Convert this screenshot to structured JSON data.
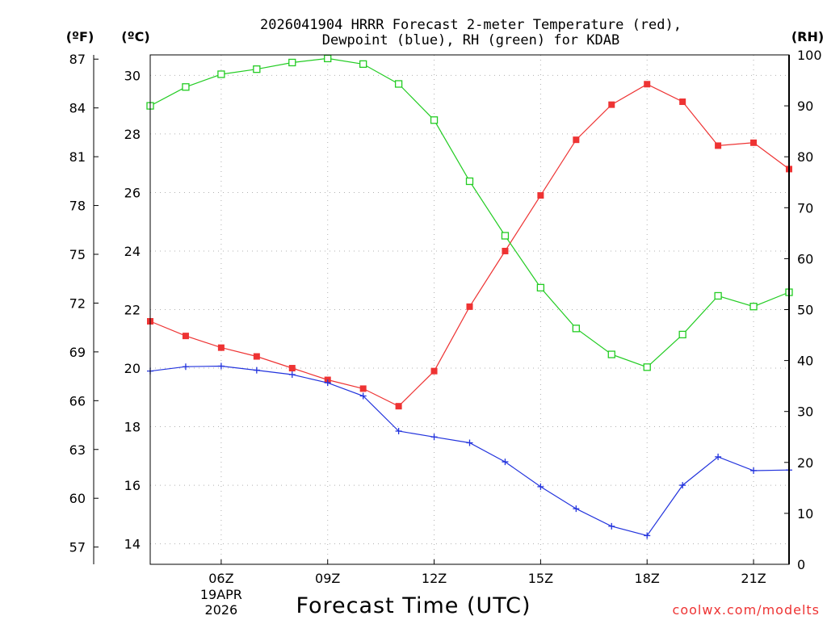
{
  "chart_data": {
    "type": "line",
    "title_line1": "2026041904 HRRR Forecast 2-meter Temperature (red),",
    "title_line2": "Dewpoint (blue), RH (green) for KDAB",
    "unit_f": "(ºF)",
    "unit_c": "(ºC)",
    "unit_rh": "(RH)",
    "xlabel": "Forecast Time (UTC)",
    "credit": "coolwx.com/modelts",
    "x_hours": [
      4,
      5,
      6,
      7,
      8,
      9,
      10,
      11,
      12,
      13,
      14,
      15,
      16,
      17,
      18,
      19,
      20,
      21,
      22
    ],
    "xlim": [
      4,
      22
    ],
    "x_ticks": [
      {
        "hour": 6,
        "label": "06Z",
        "sub1": "19APR",
        "sub2": "2026"
      },
      {
        "hour": 9,
        "label": "09Z"
      },
      {
        "hour": 12,
        "label": "12Z"
      },
      {
        "hour": 15,
        "label": "15Z"
      },
      {
        "hour": 18,
        "label": "18Z"
      },
      {
        "hour": 21,
        "label": "21Z"
      }
    ],
    "ylim_c": [
      13.3,
      30.7
    ],
    "yticks_c": [
      "14",
      "16",
      "18",
      "20",
      "22",
      "24",
      "26",
      "28",
      "30"
    ],
    "yticks_f": [
      "57",
      "60",
      "63",
      "66",
      "69",
      "72",
      "75",
      "78",
      "81",
      "84",
      "87"
    ],
    "ylim_rh": [
      0,
      100
    ],
    "yticks_rh": [
      "0",
      "10",
      "20",
      "30",
      "40",
      "50",
      "60",
      "70",
      "80",
      "90",
      "100"
    ],
    "colors": {
      "temperature": "#ee3333",
      "dewpoint": "#2233dd",
      "rh": "#22cc22"
    },
    "series": [
      {
        "name": "Temperature",
        "units": "C",
        "marker": "filled-square",
        "values": [
          21.6,
          21.1,
          20.7,
          20.4,
          20.0,
          19.6,
          19.3,
          18.7,
          19.9,
          22.1,
          24.0,
          25.9,
          27.8,
          29.0,
          29.7,
          29.1,
          27.6,
          27.7,
          26.8
        ]
      },
      {
        "name": "Dewpoint",
        "units": "C",
        "marker": "plus",
        "values": [
          19.9,
          20.05,
          20.07,
          19.93,
          19.78,
          19.5,
          19.05,
          17.85,
          17.65,
          17.45,
          16.8,
          15.95,
          15.2,
          14.6,
          14.28,
          16.0,
          16.97,
          16.5,
          16.52
        ]
      },
      {
        "name": "RH",
        "units": "%",
        "marker": "open-square",
        "values": [
          90,
          93.7,
          96.2,
          97.2,
          98.5,
          99.3,
          98.2,
          94.3,
          87.2,
          75.2,
          64.5,
          54.3,
          46.3,
          41.2,
          38.7,
          45.1,
          52.7,
          50.6,
          53.4
        ]
      }
    ]
  }
}
